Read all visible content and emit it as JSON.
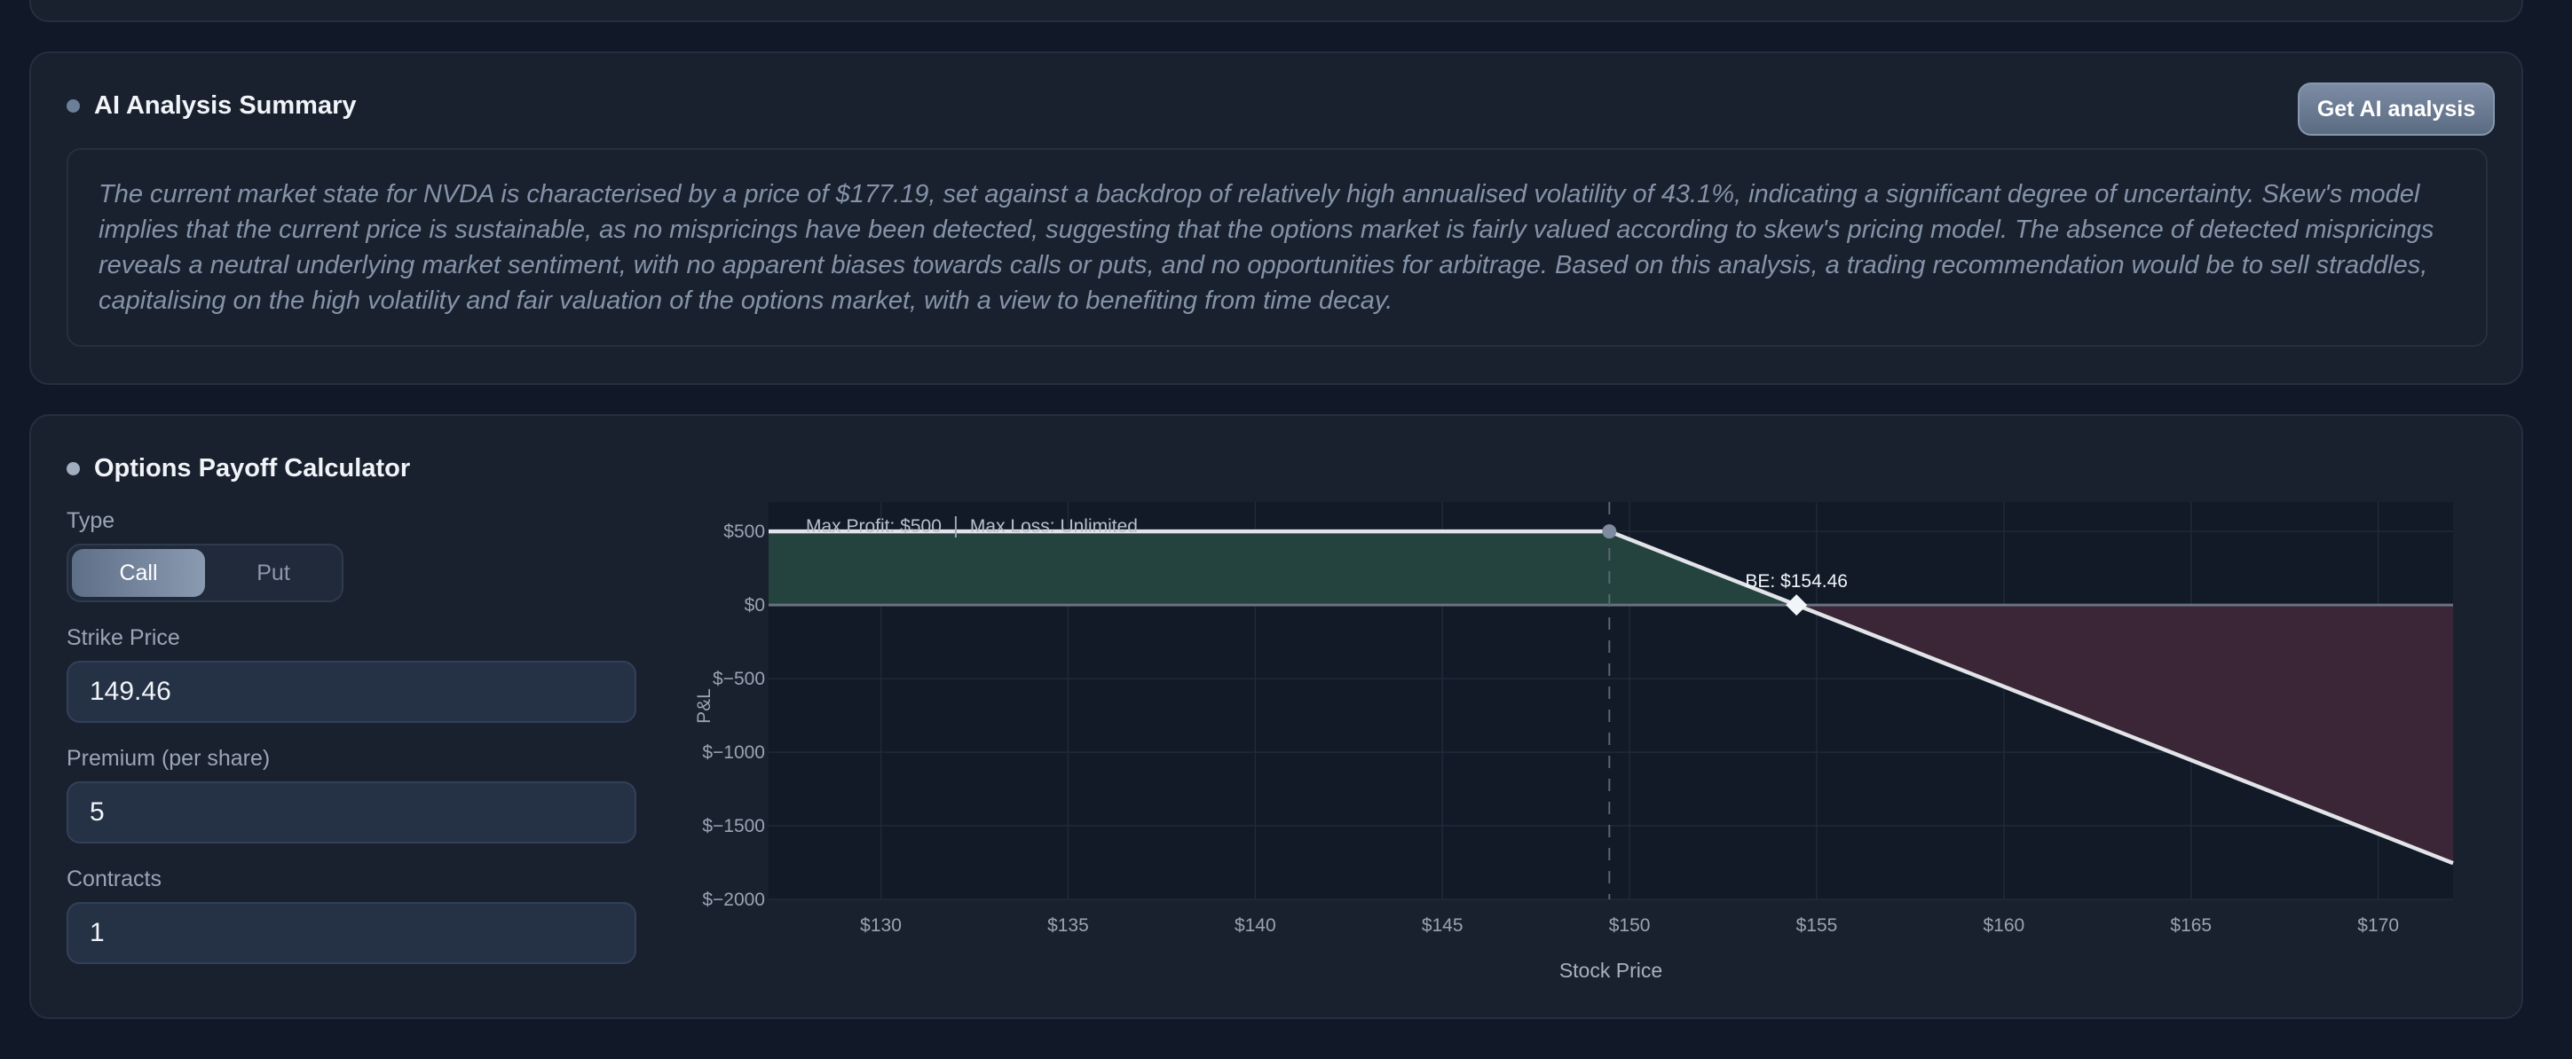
{
  "ai_summary": {
    "title": "AI Analysis Summary",
    "button_label": "Get AI analysis",
    "text": "The current market state for NVDA is characterised by a price of $177.19, set against a backdrop of relatively high annualised volatility of 43.1%, indicating a significant degree of uncertainty. Skew's model implies that the current price is sustainable, as no mispricings have been detected, suggesting that the options market is fairly valued according to skew's pricing model. The absence of detected mispricings reveals a neutral underlying market sentiment, with no apparent biases towards calls or puts, and no opportunities for arbitrage. Based on this analysis, a trading recommendation would be to sell straddles, capitalising on the high volatility and fair valuation of the options market, with a view to benefiting from time decay."
  },
  "calculator": {
    "title": "Options Payoff Calculator",
    "type_label": "Type",
    "type_options": [
      "Call",
      "Put"
    ],
    "selected_type": "Call",
    "strike_label": "Strike Price",
    "strike_value": "149.46",
    "premium_label": "Premium (per share)",
    "premium_value": "5",
    "contracts_label": "Contracts",
    "contracts_value": "1"
  },
  "chart_data": {
    "type": "line",
    "xlabel": "Stock Price",
    "ylabel": "P&L",
    "xlim": [
      127,
      172
    ],
    "ylim": [
      -2000,
      700
    ],
    "x_ticks": [
      130,
      135,
      140,
      145,
      150,
      155,
      160,
      165,
      170
    ],
    "x_tick_labels": [
      "$130",
      "$135",
      "$140",
      "$145",
      "$150",
      "$155",
      "$160",
      "$165",
      "$170"
    ],
    "y_ticks": [
      500,
      0,
      -500,
      -1000,
      -1500,
      -2000
    ],
    "y_tick_labels": [
      "$500",
      "$0",
      "$−500",
      "$−1000",
      "$−1500",
      "$−2000"
    ],
    "series": [
      {
        "values": [
          [
            127,
            500
          ],
          [
            149.46,
            500
          ],
          [
            154.46,
            0
          ],
          [
            172,
            -1754
          ]
        ]
      }
    ],
    "strike": 149.46,
    "breakeven": 154.46,
    "breakeven_label": "BE: $154.46",
    "max_profit_label": "Max Profit: $500",
    "max_loss_label": "Max Loss: Unlimited",
    "colors": {
      "profit_fill": "#24433f",
      "loss_fill": "#3a2636",
      "line": "#e2e4e9",
      "plot_bg": "#111a26"
    }
  }
}
